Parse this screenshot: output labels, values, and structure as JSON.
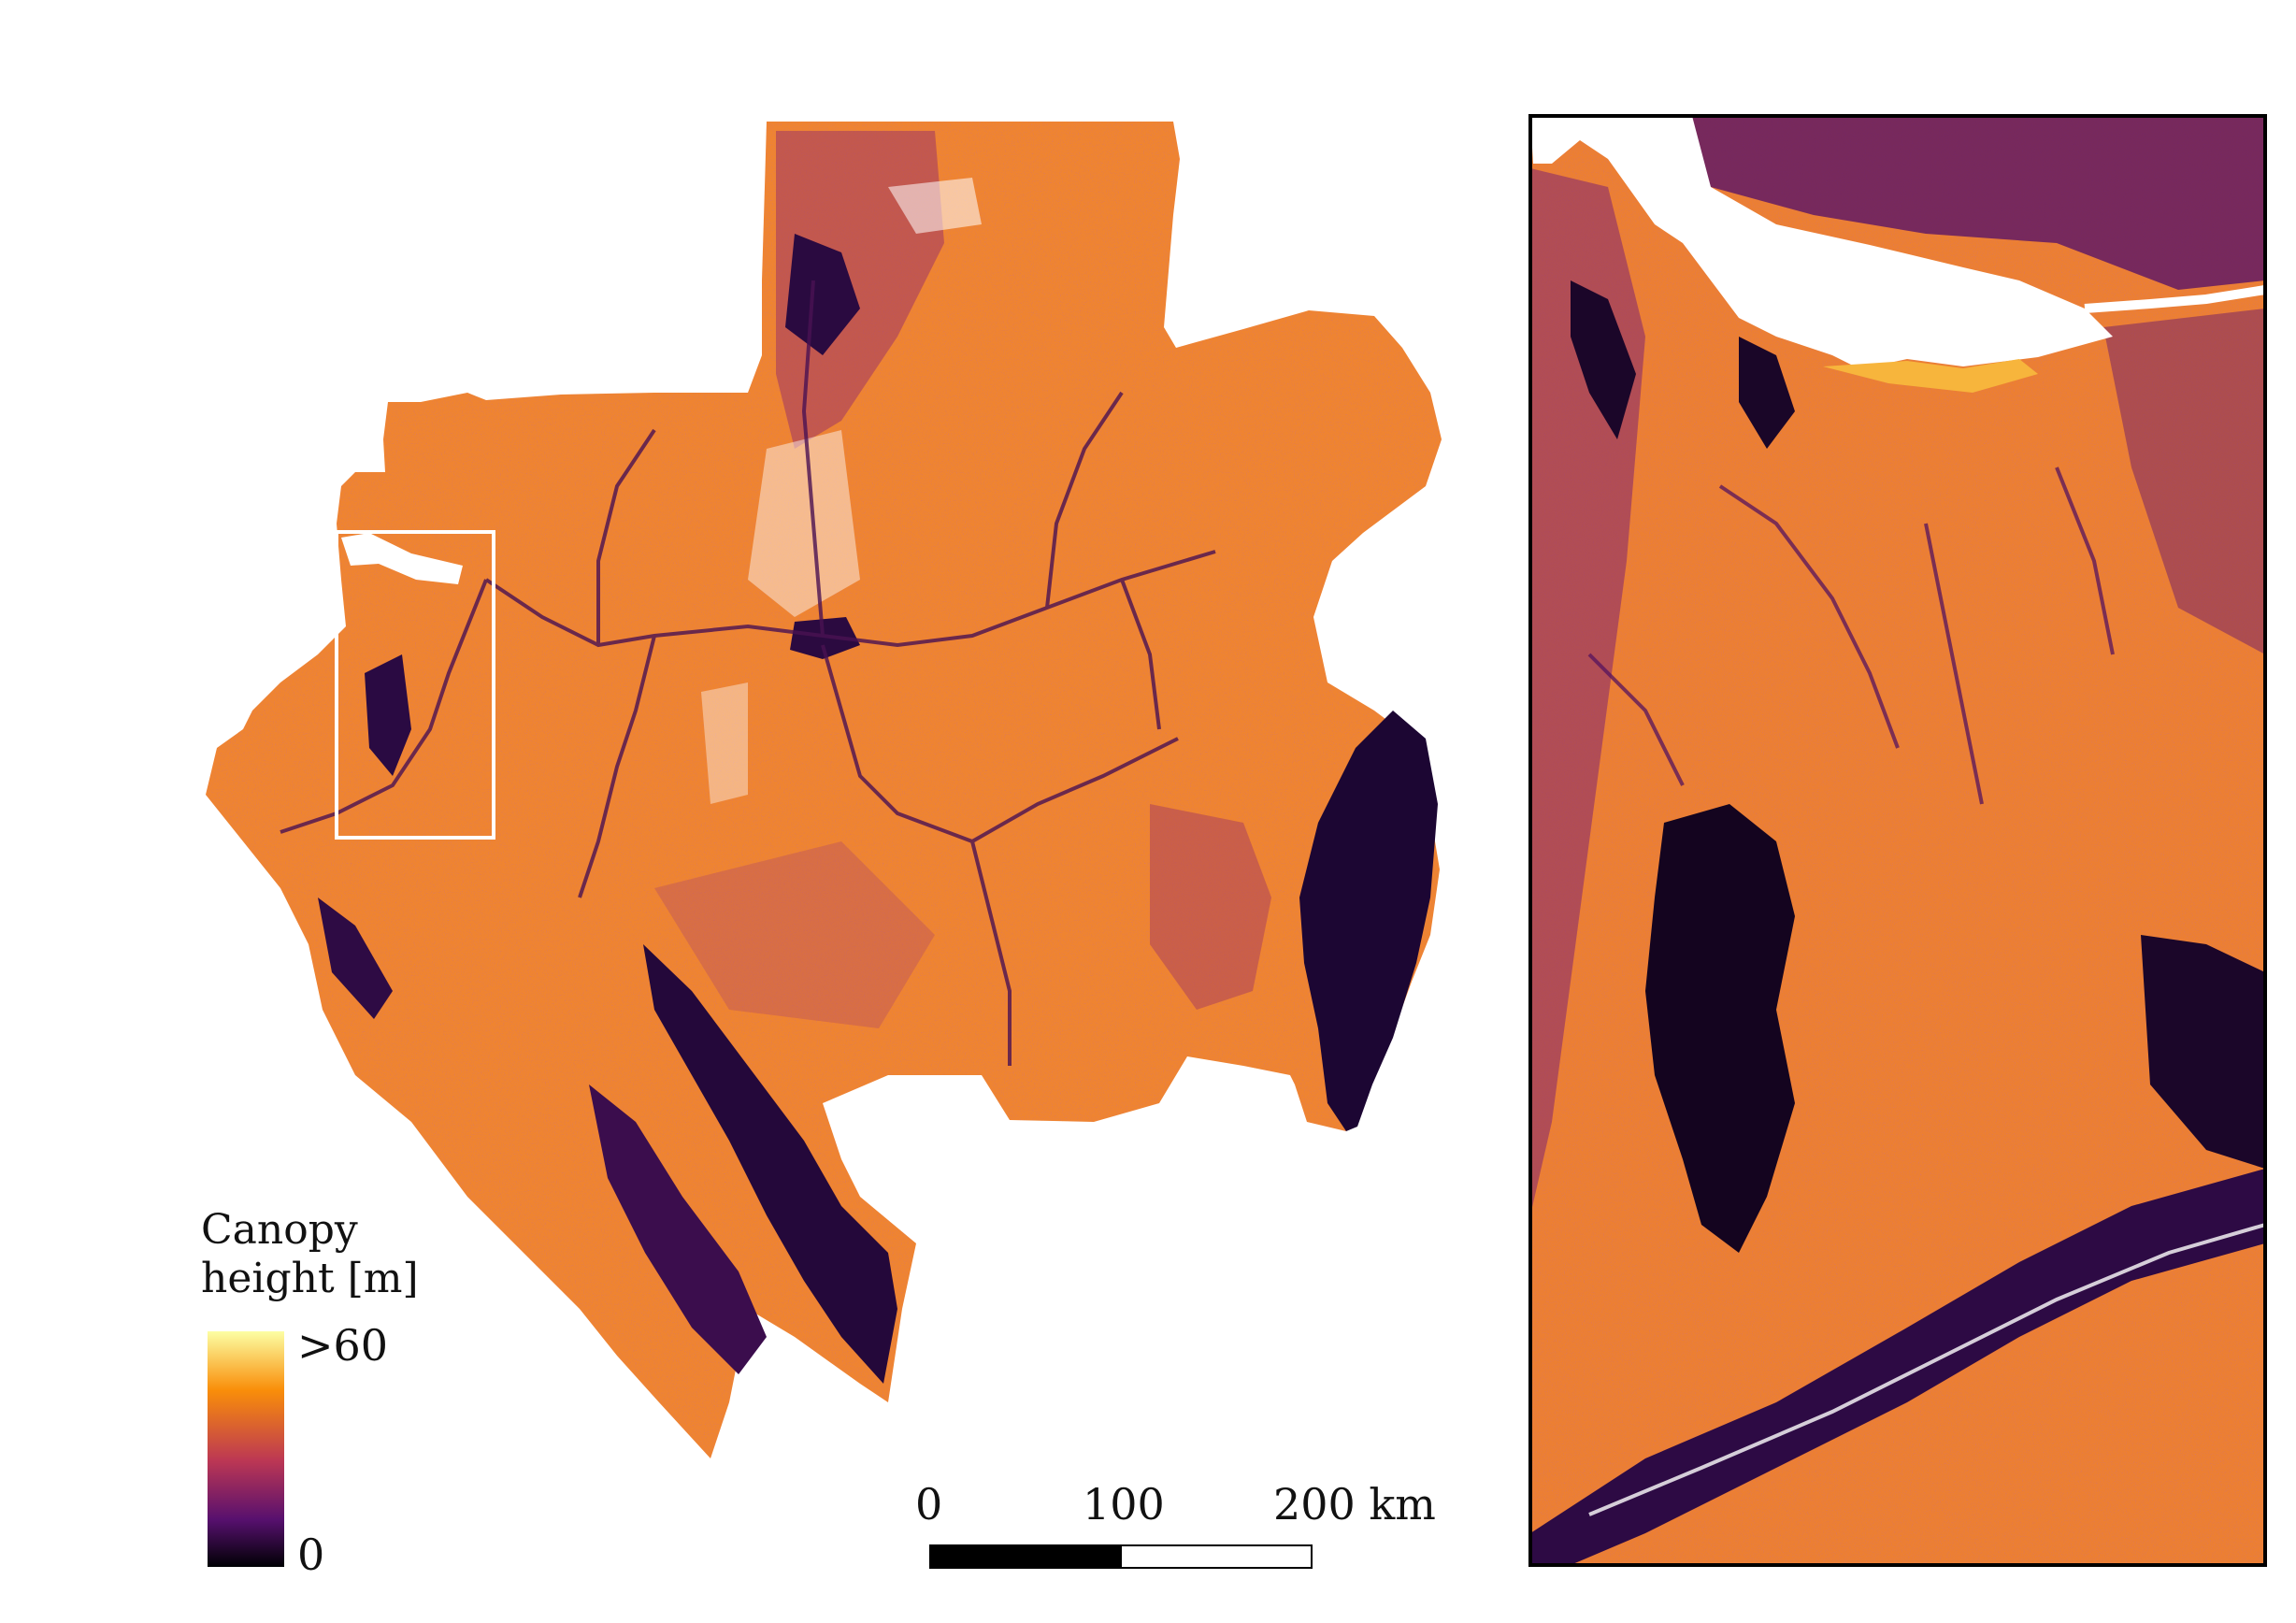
{
  "legend": {
    "title_line1": "Canopy",
    "title_line2": "height [m]",
    "max_label": ">60",
    "min_label": "0",
    "colormap": [
      "#000004",
      "#57106e",
      "#bc3754",
      "#f98e09",
      "#fcffa4"
    ]
  },
  "scalebar": {
    "tick_0": "0",
    "tick_1": "100",
    "tick_2": "200 km"
  },
  "colors": {
    "forest_tall": "#f28a2e",
    "forest_mid": "#d8602c",
    "forest_low": "#8f2f6b",
    "non_forest": "#1a0630",
    "water": "#ffffff",
    "inset_box": "#ffffff",
    "inset_frame": "#000000"
  }
}
